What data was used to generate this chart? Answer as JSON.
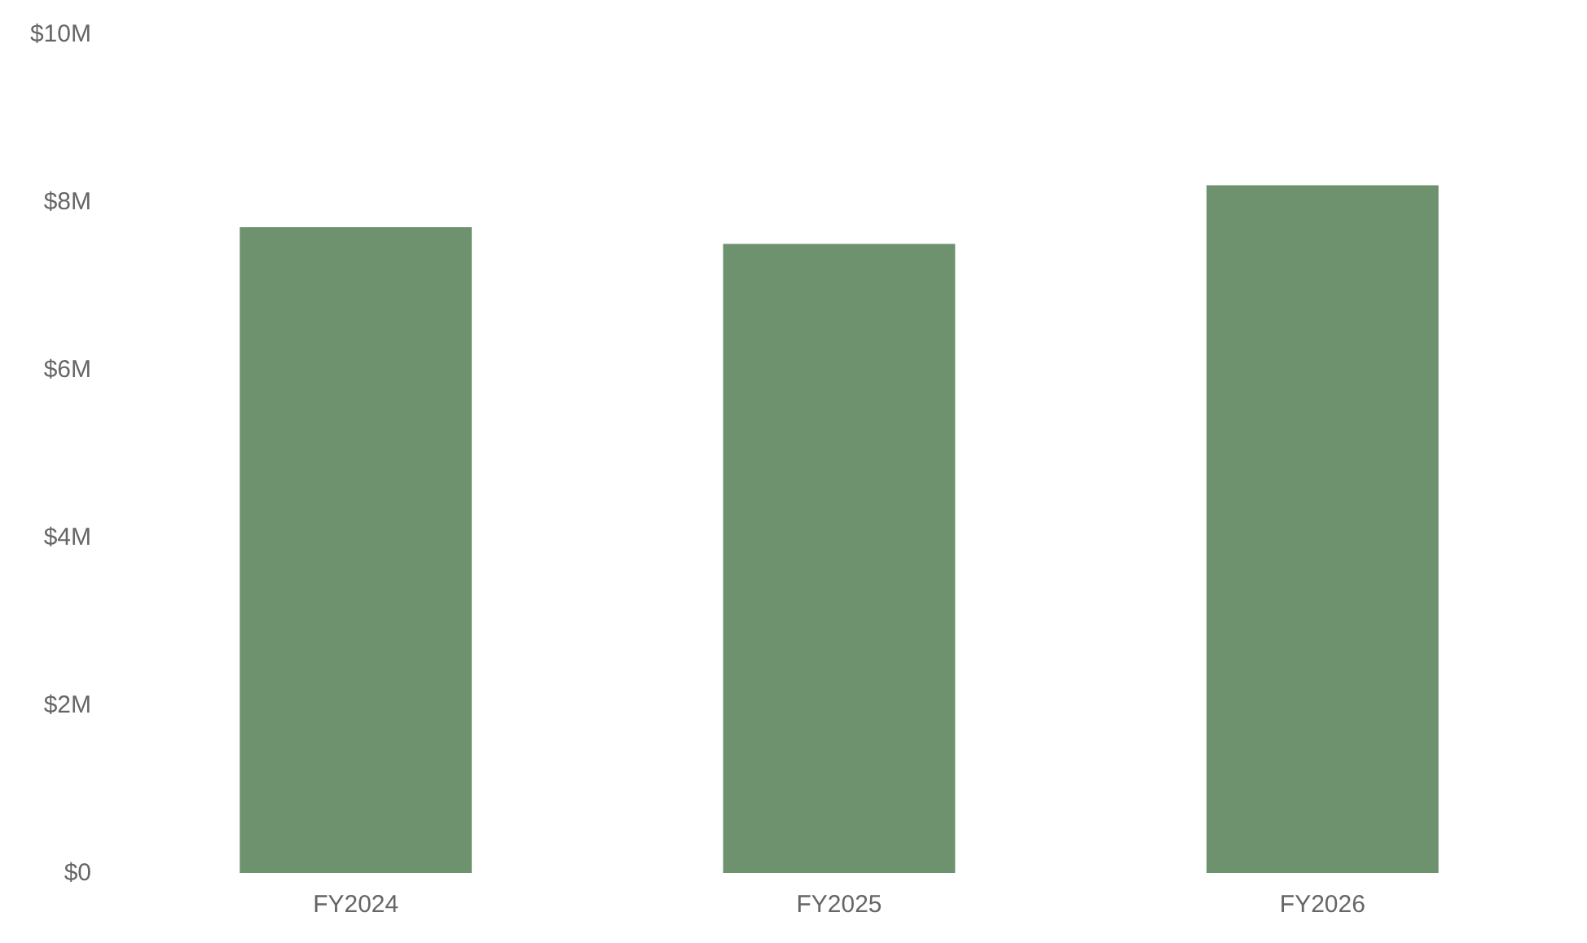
{
  "chart_data": {
    "type": "bar",
    "categories": [
      "FY2024",
      "FY2025",
      "FY2026"
    ],
    "values": [
      7.7,
      7.5,
      8.2
    ],
    "color": "#6e926e",
    "ylim": [
      0,
      10
    ],
    "yticks": [
      {
        "value": 0,
        "label": "$0"
      },
      {
        "value": 2,
        "label": "$2M"
      },
      {
        "value": 4,
        "label": "$4M"
      },
      {
        "value": 6,
        "label": "$6M"
      },
      {
        "value": 8,
        "label": "$8M"
      },
      {
        "value": 10,
        "label": "$10M"
      }
    ],
    "grid": false
  }
}
